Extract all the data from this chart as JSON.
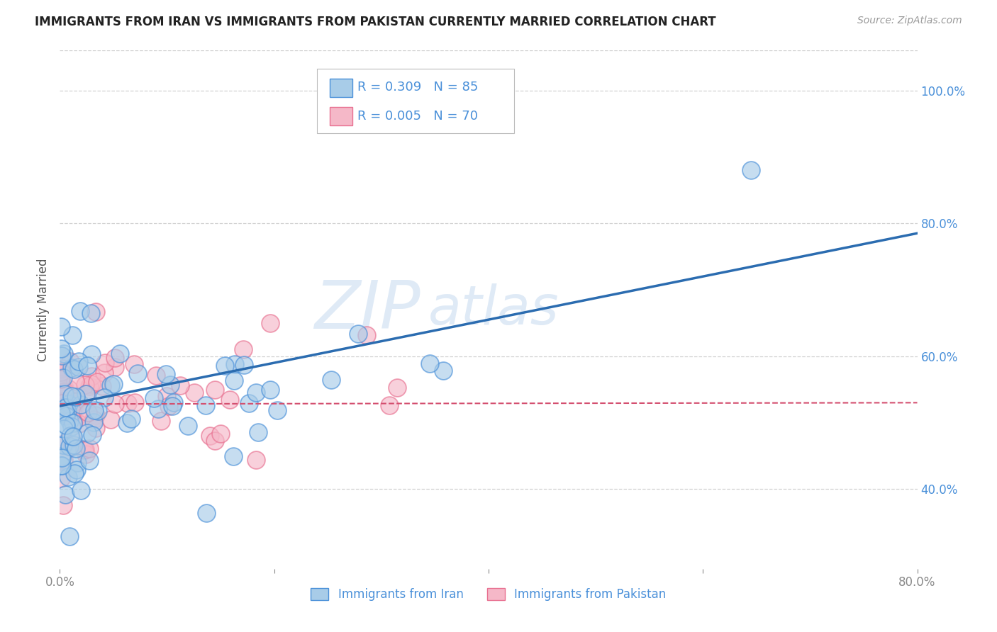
{
  "title": "IMMIGRANTS FROM IRAN VS IMMIGRANTS FROM PAKISTAN CURRENTLY MARRIED CORRELATION CHART",
  "source": "Source: ZipAtlas.com",
  "ylabel": "Currently Married",
  "xlim": [
    0.0,
    0.8
  ],
  "ylim": [
    0.28,
    1.06
  ],
  "yticks": [
    0.4,
    0.6,
    0.8,
    1.0
  ],
  "xticks": [
    0.0,
    0.2,
    0.4,
    0.6,
    0.8
  ],
  "ytick_labels": [
    "40.0%",
    "60.0%",
    "80.0%",
    "100.0%"
  ],
  "xtick_labels": [
    "0.0%",
    "",
    "",
    "",
    "80.0%"
  ],
  "iran_color": "#a8cce8",
  "pakistan_color": "#f5b8c8",
  "iran_edge_color": "#4a90d9",
  "pakistan_edge_color": "#e87090",
  "iran_R": 0.309,
  "iran_N": 85,
  "pakistan_R": 0.005,
  "pakistan_N": 70,
  "iran_line_color": "#2b6cb0",
  "pakistan_line_color": "#d45070",
  "watermark_zip": "ZIP",
  "watermark_atlas": "atlas",
  "background_color": "#ffffff",
  "grid_color": "#cccccc",
  "tick_color": "#4a90d9",
  "iran_line_x0": 0.0,
  "iran_line_y0": 0.525,
  "iran_line_x1": 0.8,
  "iran_line_y1": 0.785,
  "pakistan_line_x0": 0.0,
  "pakistan_line_y0": 0.528,
  "pakistan_line_x1": 0.8,
  "pakistan_line_y1": 0.53
}
